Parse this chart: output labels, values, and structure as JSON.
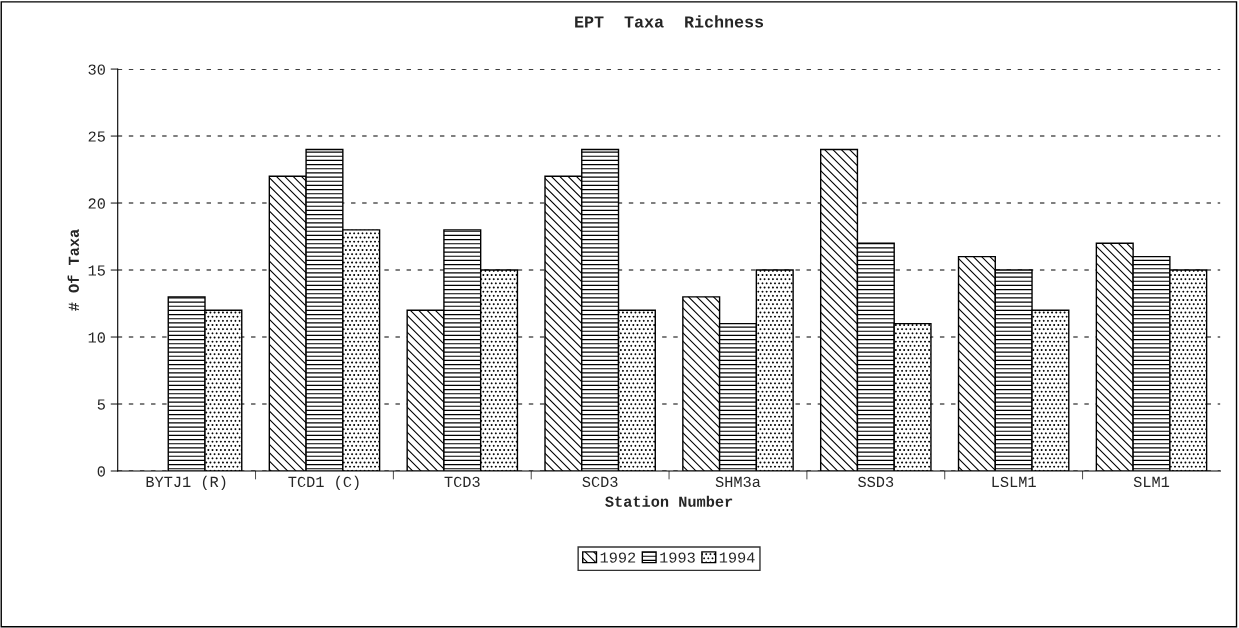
{
  "chart_data": {
    "type": "bar",
    "title": "EPT  Taxa  Richness",
    "xlabel": "Station Number",
    "ylabel": "# Of Taxa",
    "categories": [
      "BYTJ1 (R)",
      "TCD1 (C)",
      "TCD3",
      "SCD3",
      "SHM3a",
      "SSD3",
      "LSLM1",
      "SLM1"
    ],
    "series": [
      {
        "name": "1992",
        "color": "#000000",
        "values": [
          null,
          22,
          12,
          22,
          13,
          24,
          16,
          17
        ]
      },
      {
        "name": "1993",
        "color": "#000000",
        "values": [
          13,
          24,
          18,
          24,
          11,
          17,
          15,
          16
        ]
      },
      {
        "name": "1994",
        "color": "#000000",
        "values": [
          12,
          18,
          15,
          12,
          15,
          11,
          12,
          15
        ]
      }
    ],
    "ylim": [
      0,
      30
    ],
    "yticks": [
      0,
      5,
      10,
      15,
      20,
      25,
      30
    ],
    "grid": "y",
    "legend": "bottom"
  }
}
